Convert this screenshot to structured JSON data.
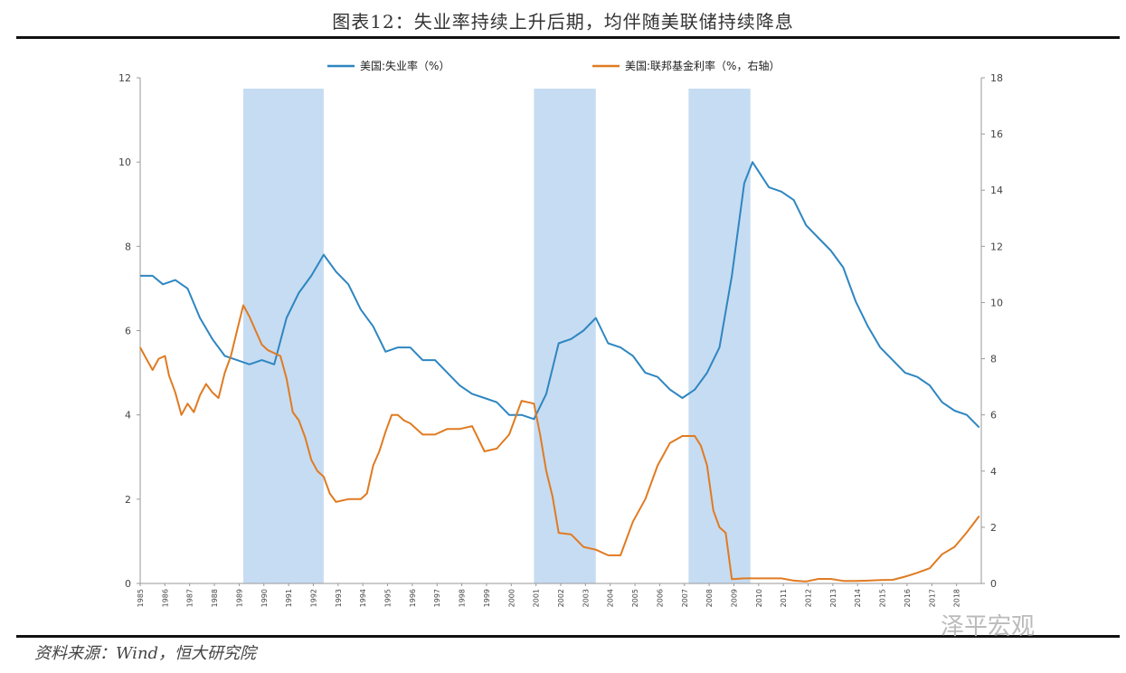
{
  "header": {
    "title": "图表12：失业率持续上升后期，均伴随美联储持续降息"
  },
  "footer": {
    "source": "资料来源：Wind，恒大研究院",
    "watermark": "泽平宏观"
  },
  "chart_data": {
    "type": "line",
    "title": "图表12：失业率持续上升后期，均伴随美联储持续降息",
    "x_range": [
      "1985-01",
      "2019-01"
    ],
    "x_tick_labels": [
      "1985",
      "1986",
      "1987",
      "1988",
      "1989",
      "1990",
      "1991",
      "1992",
      "1993",
      "1994",
      "1995",
      "1996",
      "1997",
      "1998",
      "1999",
      "2000",
      "2001",
      "2002",
      "2003",
      "2004",
      "2005",
      "2006",
      "2007",
      "2008",
      "2009",
      "2010",
      "2011",
      "2012",
      "2013",
      "2014",
      "2015",
      "2016",
      "2017",
      "2018"
    ],
    "y_left": {
      "range": [
        0,
        12
      ],
      "ticks": [
        0,
        2,
        4,
        6,
        8,
        10,
        12
      ]
    },
    "y_right": {
      "range": [
        0,
        18
      ],
      "ticks": [
        0,
        2,
        4,
        6,
        8,
        10,
        12,
        14,
        16,
        18
      ]
    },
    "legend_position": "top",
    "grid": false,
    "recessions": [
      {
        "start": "1989-03",
        "end": "1992-06"
      },
      {
        "start": "2000-12",
        "end": "2003-06"
      },
      {
        "start": "2007-03",
        "end": "2009-09"
      }
    ],
    "series": [
      {
        "name": "美国:失业率（%）",
        "axis": "left",
        "color": "#2e86c1",
        "points": [
          [
            "1985-01",
            7.3
          ],
          [
            "1985-07",
            7.3
          ],
          [
            "1985-12",
            7.1
          ],
          [
            "1986-06",
            7.2
          ],
          [
            "1986-12",
            7.0
          ],
          [
            "1987-06",
            6.3
          ],
          [
            "1987-12",
            5.8
          ],
          [
            "1988-06",
            5.4
          ],
          [
            "1988-12",
            5.3
          ],
          [
            "1989-06",
            5.2
          ],
          [
            "1989-12",
            5.3
          ],
          [
            "1990-06",
            5.2
          ],
          [
            "1990-12",
            6.3
          ],
          [
            "1991-06",
            6.9
          ],
          [
            "1991-12",
            7.3
          ],
          [
            "1992-06",
            7.8
          ],
          [
            "1992-12",
            7.4
          ],
          [
            "1993-06",
            7.1
          ],
          [
            "1993-12",
            6.5
          ],
          [
            "1994-06",
            6.1
          ],
          [
            "1994-12",
            5.5
          ],
          [
            "1995-06",
            5.6
          ],
          [
            "1995-12",
            5.6
          ],
          [
            "1996-06",
            5.3
          ],
          [
            "1996-12",
            5.3
          ],
          [
            "1997-06",
            5.0
          ],
          [
            "1997-12",
            4.7
          ],
          [
            "1998-06",
            4.5
          ],
          [
            "1998-12",
            4.4
          ],
          [
            "1999-06",
            4.3
          ],
          [
            "1999-12",
            4.0
          ],
          [
            "2000-06",
            4.0
          ],
          [
            "2000-12",
            3.9
          ],
          [
            "2001-06",
            4.5
          ],
          [
            "2001-12",
            5.7
          ],
          [
            "2002-06",
            5.8
          ],
          [
            "2002-12",
            6.0
          ],
          [
            "2003-06",
            6.3
          ],
          [
            "2003-12",
            5.7
          ],
          [
            "2004-06",
            5.6
          ],
          [
            "2004-12",
            5.4
          ],
          [
            "2005-06",
            5.0
          ],
          [
            "2005-12",
            4.9
          ],
          [
            "2006-06",
            4.6
          ],
          [
            "2006-12",
            4.4
          ],
          [
            "2007-06",
            4.6
          ],
          [
            "2007-12",
            5.0
          ],
          [
            "2008-06",
            5.6
          ],
          [
            "2008-12",
            7.3
          ],
          [
            "2009-06",
            9.5
          ],
          [
            "2009-10",
            10.0
          ],
          [
            "2010-06",
            9.4
          ],
          [
            "2010-12",
            9.3
          ],
          [
            "2011-06",
            9.1
          ],
          [
            "2011-12",
            8.5
          ],
          [
            "2012-06",
            8.2
          ],
          [
            "2012-12",
            7.9
          ],
          [
            "2013-06",
            7.5
          ],
          [
            "2013-12",
            6.7
          ],
          [
            "2014-06",
            6.1
          ],
          [
            "2014-12",
            5.6
          ],
          [
            "2015-06",
            5.3
          ],
          [
            "2015-12",
            5.0
          ],
          [
            "2016-06",
            4.9
          ],
          [
            "2016-12",
            4.7
          ],
          [
            "2017-06",
            4.3
          ],
          [
            "2017-12",
            4.1
          ],
          [
            "2018-06",
            4.0
          ],
          [
            "2018-12",
            3.7
          ]
        ]
      },
      {
        "name": "美国:联邦基金利率（%，右轴）",
        "axis": "right",
        "color": "#e07b22",
        "points": [
          [
            "1985-01",
            8.4
          ],
          [
            "1985-04",
            8.0
          ],
          [
            "1985-07",
            7.6
          ],
          [
            "1985-10",
            8.0
          ],
          [
            "1986-01",
            8.1
          ],
          [
            "1986-03",
            7.4
          ],
          [
            "1986-06",
            6.8
          ],
          [
            "1986-09",
            6.0
          ],
          [
            "1986-12",
            6.4
          ],
          [
            "1987-03",
            6.1
          ],
          [
            "1987-06",
            6.7
          ],
          [
            "1987-09",
            7.1
          ],
          [
            "1987-12",
            6.8
          ],
          [
            "1988-03",
            6.6
          ],
          [
            "1988-06",
            7.5
          ],
          [
            "1988-09",
            8.1
          ],
          [
            "1988-12",
            9.0
          ],
          [
            "1989-03",
            9.9
          ],
          [
            "1989-06",
            9.5
          ],
          [
            "1989-09",
            9.0
          ],
          [
            "1989-12",
            8.5
          ],
          [
            "1990-03",
            8.3
          ],
          [
            "1990-06",
            8.2
          ],
          [
            "1990-09",
            8.1
          ],
          [
            "1990-12",
            7.3
          ],
          [
            "1991-03",
            6.1
          ],
          [
            "1991-06",
            5.8
          ],
          [
            "1991-09",
            5.2
          ],
          [
            "1991-12",
            4.4
          ],
          [
            "1992-03",
            4.0
          ],
          [
            "1992-06",
            3.8
          ],
          [
            "1992-09",
            3.2
          ],
          [
            "1992-12",
            2.9
          ],
          [
            "1993-06",
            3.0
          ],
          [
            "1993-12",
            3.0
          ],
          [
            "1994-03",
            3.2
          ],
          [
            "1994-06",
            4.2
          ],
          [
            "1994-09",
            4.7
          ],
          [
            "1994-12",
            5.4
          ],
          [
            "1995-03",
            6.0
          ],
          [
            "1995-06",
            6.0
          ],
          [
            "1995-09",
            5.8
          ],
          [
            "1995-12",
            5.7
          ],
          [
            "1996-06",
            5.3
          ],
          [
            "1996-12",
            5.3
          ],
          [
            "1997-06",
            5.5
          ],
          [
            "1997-12",
            5.5
          ],
          [
            "1998-06",
            5.6
          ],
          [
            "1998-12",
            4.7
          ],
          [
            "1999-06",
            4.8
          ],
          [
            "1999-12",
            5.3
          ],
          [
            "2000-06",
            6.5
          ],
          [
            "2000-12",
            6.4
          ],
          [
            "2001-03",
            5.3
          ],
          [
            "2001-06",
            4.0
          ],
          [
            "2001-09",
            3.1
          ],
          [
            "2001-12",
            1.8
          ],
          [
            "2002-06",
            1.75
          ],
          [
            "2002-12",
            1.3
          ],
          [
            "2003-06",
            1.2
          ],
          [
            "2003-12",
            1.0
          ],
          [
            "2004-06",
            1.0
          ],
          [
            "2004-12",
            2.2
          ],
          [
            "2005-06",
            3.0
          ],
          [
            "2005-12",
            4.2
          ],
          [
            "2006-06",
            5.0
          ],
          [
            "2006-12",
            5.25
          ],
          [
            "2007-06",
            5.25
          ],
          [
            "2007-09",
            4.9
          ],
          [
            "2007-12",
            4.2
          ],
          [
            "2008-03",
            2.6
          ],
          [
            "2008-06",
            2.0
          ],
          [
            "2008-09",
            1.8
          ],
          [
            "2008-12",
            0.15
          ],
          [
            "2009-06",
            0.18
          ],
          [
            "2010-06",
            0.18
          ],
          [
            "2010-12",
            0.18
          ],
          [
            "2011-06",
            0.1
          ],
          [
            "2011-12",
            0.07
          ],
          [
            "2012-06",
            0.16
          ],
          [
            "2012-12",
            0.16
          ],
          [
            "2013-06",
            0.09
          ],
          [
            "2013-12",
            0.09
          ],
          [
            "2014-06",
            0.1
          ],
          [
            "2014-12",
            0.12
          ],
          [
            "2015-06",
            0.13
          ],
          [
            "2015-12",
            0.24
          ],
          [
            "2016-06",
            0.38
          ],
          [
            "2016-12",
            0.54
          ],
          [
            "2017-06",
            1.04
          ],
          [
            "2017-12",
            1.3
          ],
          [
            "2018-06",
            1.82
          ],
          [
            "2018-12",
            2.4
          ]
        ]
      }
    ]
  }
}
